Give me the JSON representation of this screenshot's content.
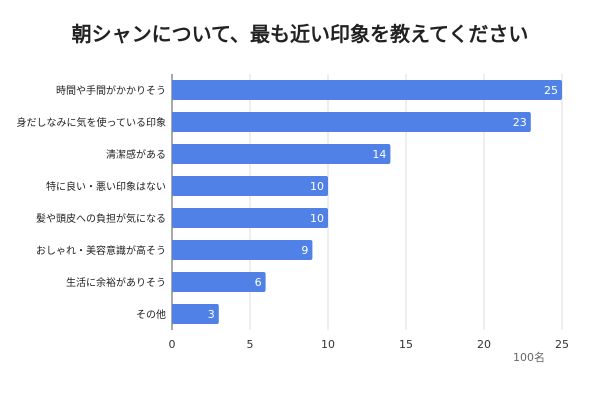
{
  "title": "朝シャンについて、最も近い印象を教えてください",
  "chart_data": {
    "type": "bar",
    "orientation": "horizontal",
    "title": "朝シャンについて、最も近い印象を教えてください",
    "categories": [
      "時間や手間がかかりそう",
      "身だしなみに気を使っている印象",
      "清潔感がある",
      "特に良い・悪い印象はない",
      "髪や頭皮への負担が気になる",
      "おしゃれ・美容意識が高そう",
      "生活に余裕がありそう",
      "その他"
    ],
    "values": [
      25,
      23,
      14,
      10,
      10,
      9,
      6,
      3
    ],
    "xlim": [
      0,
      25
    ],
    "xticks": [
      0,
      5,
      10,
      15,
      20,
      25
    ],
    "unit_label": "100名",
    "grid": true,
    "bar_color": "#4f81e6",
    "value_label_color": "#ffffff"
  }
}
